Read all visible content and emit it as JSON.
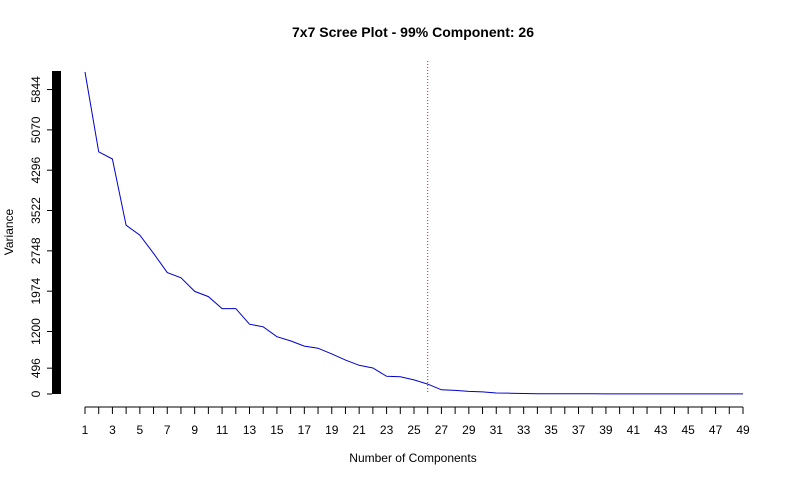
{
  "chart_data": {
    "type": "line",
    "title": "7x7 Scree Plot - 99% Component: 26",
    "xlabel": "Number of Components",
    "ylabel": "Variance",
    "xlim": [
      1,
      49
    ],
    "ylim": [
      0,
      6200
    ],
    "x_tick_labels": [
      "1",
      "3",
      "5",
      "7",
      "9",
      "11",
      "13",
      "15",
      "17",
      "19",
      "21",
      "23",
      "25",
      "27",
      "29",
      "31",
      "33",
      "35",
      "37",
      "39",
      "41",
      "43",
      "45",
      "47",
      "49"
    ],
    "y_tick_labels": [
      "0",
      "496",
      "1200",
      "1974",
      "2748",
      "3522",
      "4296",
      "5070",
      "5844"
    ],
    "cutoff_component": 26,
    "series": [
      {
        "color": "#0000cc",
        "x": [
          1,
          2,
          3,
          4,
          5,
          6,
          7,
          8,
          9,
          10,
          11,
          12,
          13,
          14,
          15,
          16,
          17,
          18,
          19,
          20,
          21,
          22,
          23,
          24,
          25,
          26,
          27,
          28,
          29,
          30,
          31,
          32,
          33,
          34,
          35,
          36,
          37,
          38,
          39,
          40,
          41,
          42,
          43,
          44,
          45,
          46,
          47,
          48,
          49
        ],
        "values": [
          6180,
          4650,
          4510,
          3240,
          3050,
          2700,
          2330,
          2230,
          1970,
          1870,
          1640,
          1640,
          1340,
          1290,
          1100,
          1020,
          920,
          880,
          770,
          650,
          550,
          500,
          340,
          330,
          270,
          190,
          80,
          70,
          50,
          40,
          20,
          15,
          10,
          5,
          5,
          4,
          3,
          3,
          2,
          2,
          2,
          1,
          1,
          1,
          1,
          1,
          1,
          1,
          1
        ]
      }
    ],
    "cutoff_line_color": "#8b3a3a"
  }
}
